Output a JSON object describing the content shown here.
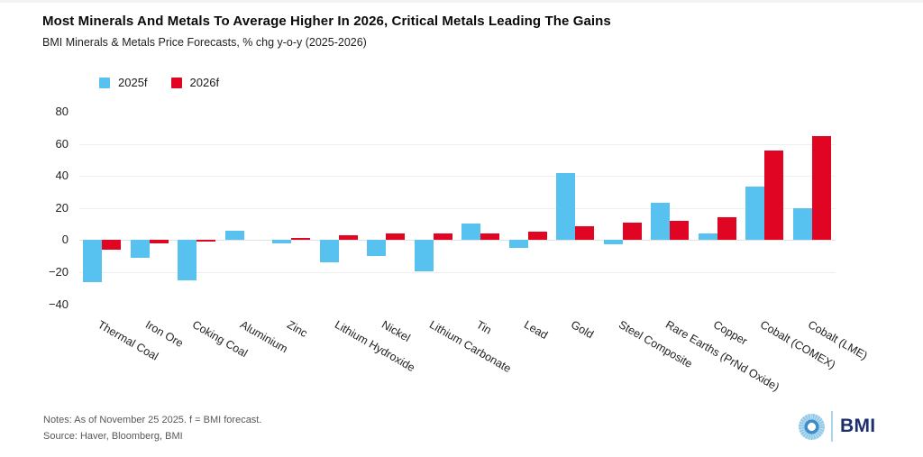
{
  "header": {
    "title": "Most Minerals And Metals To Average Higher In 2026, Critical Metals Leading The Gains",
    "subtitle": "BMI Minerals & Metals Price Forecasts, % chg y-o-y (2025-2026)"
  },
  "chart_data": {
    "type": "bar",
    "title": "Most Minerals And Metals To Average Higher In 2026, Critical Metals Leading The Gains",
    "subtitle": "BMI Minerals & Metals Price Forecasts, % chg y-o-y (2025-2026)",
    "categories": [
      "Thermal Coal",
      "Iron Ore",
      "Coking Coal",
      "Aluminium",
      "Zinc",
      "Lithium Hydroxide",
      "Nickel",
      "Lithium Carbonate",
      "Tin",
      "Lead",
      "Gold",
      "Steel Composite",
      "Rare Earths (PrNd Oxide)",
      "Copper",
      "Cobalt (COMEX)",
      "Cobalt (LME)"
    ],
    "series": [
      {
        "name": "2025f",
        "color": "#57C2EF",
        "values": [
          -26,
          -11,
          -25,
          6,
          -2,
          -14,
          -10,
          -19.5,
          10.5,
          -5,
          42,
          -2.5,
          23,
          4,
          33.5,
          20
        ]
      },
      {
        "name": "2026f",
        "color": "#E00522",
        "values": [
          -6,
          -2,
          -1,
          0,
          1.5,
          3,
          4,
          4,
          4,
          5,
          8.5,
          11,
          12,
          14,
          56,
          65
        ]
      }
    ],
    "ylabel": "",
    "xlabel": "",
    "ylim": [
      -40,
      80
    ],
    "yticks": [
      80,
      60,
      40,
      20,
      0,
      -20,
      -40
    ],
    "gridline_ticks": [
      60,
      40,
      20,
      0,
      -20
    ],
    "legend_position": "top-left",
    "grid": "horizontal"
  },
  "footer": {
    "notes": "Notes: As of November 25 2025. f = BMI forecast.",
    "source": "Source: Haver, Bloomberg, BMI"
  },
  "branding": {
    "logo_text": "BMI",
    "navy": "#1b2f6e",
    "light_blue": "#a9d4ec"
  }
}
